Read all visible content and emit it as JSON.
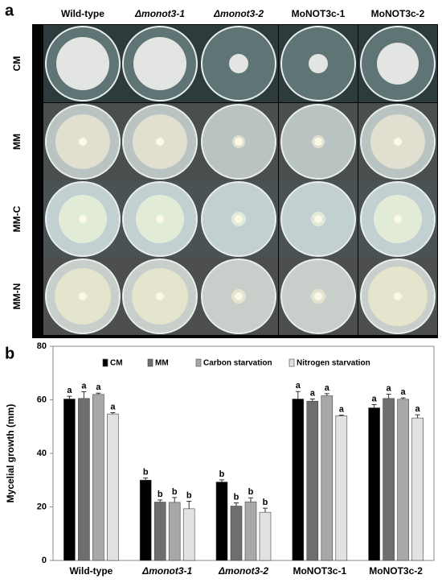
{
  "panel_a": {
    "label": "a",
    "columns": [
      "Wild-type",
      "Δmonot3-1",
      "Δmonot3-2",
      "MoNOT3c-1",
      "MoNOT3c-2"
    ],
    "rows": [
      "CM",
      "MM",
      "MM-C",
      "MM-N"
    ]
  },
  "chart_data": {
    "type": "bar",
    "panel_label": "b",
    "y_label": "Mycelial growth (mm)",
    "categories": [
      "Wild-type",
      "Δmonot3-1",
      "Δmonot3-2",
      "MoNOT3c-1",
      "MoNOT3c-2"
    ],
    "series": [
      {
        "name": "CM",
        "color": "#000000",
        "values": [
          60.3,
          30,
          29.3,
          60.3,
          57
        ],
        "errors": [
          1,
          0.8,
          0.8,
          2.8,
          1.2
        ],
        "letters": [
          "a",
          "b",
          "b",
          "a",
          "a"
        ]
      },
      {
        "name": "MM",
        "color": "#6e6e6e",
        "values": [
          60.5,
          21.8,
          20.3,
          59.5,
          60.5
        ],
        "errors": [
          2.5,
          0.8,
          1.2,
          0.8,
          1.6
        ],
        "letters": [
          "a",
          "b",
          "b",
          "a",
          "a"
        ]
      },
      {
        "name": "Carbon starvation",
        "color": "#a8a8a8",
        "values": [
          62,
          21.7,
          21.9,
          61.5,
          60.2
        ],
        "errors": [
          0.5,
          1.8,
          1.5,
          0.8,
          0.5
        ],
        "letters": [
          "a",
          "b",
          "b",
          "a",
          "a"
        ]
      },
      {
        "name": "Nitrogen starvation",
        "color": "#e2e2e2",
        "values": [
          54.7,
          19.3,
          18,
          54,
          53.2
        ],
        "errors": [
          0.5,
          2.8,
          1.5,
          0.3,
          1.2
        ],
        "letters": [
          "a",
          "b",
          "b",
          "a",
          "a"
        ]
      }
    ],
    "ylim": [
      0,
      80
    ],
    "yticks": [
      0,
      20,
      40,
      60,
      80
    ],
    "legend": "top"
  }
}
